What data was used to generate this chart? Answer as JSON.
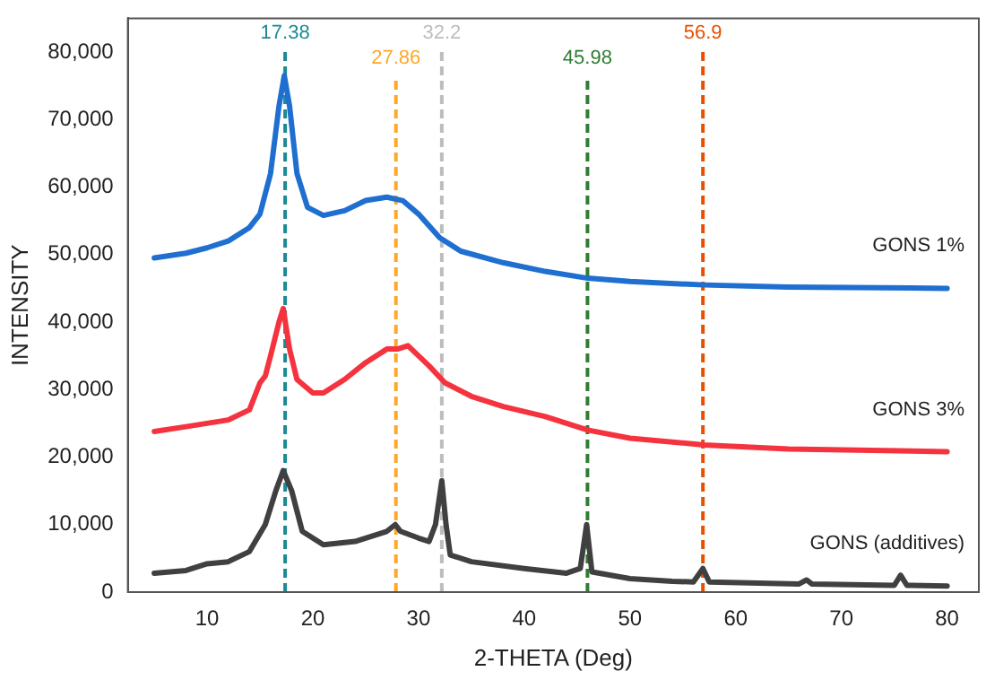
{
  "chart_data": {
    "type": "line",
    "xlabel": "2-THETA (Deg)",
    "ylabel": "INTENSITY",
    "xlim": [
      2.5,
      83
    ],
    "xticks": [
      10,
      20,
      30,
      40,
      50,
      60,
      70,
      80
    ],
    "ylim": [
      0,
      85000
    ],
    "yticks": [
      0,
      {
        "value": 10000,
        "label": "10,000"
      },
      {
        "value": 20000,
        "label": "20,000"
      },
      {
        "value": 30000,
        "label": "30,000"
      },
      {
        "value": 40000,
        "label": "40,000"
      },
      {
        "value": 50000,
        "label": "50,000"
      },
      {
        "value": 60000,
        "label": "60,000"
      },
      {
        "value": 70000,
        "label": "70,000"
      },
      {
        "value": 80000,
        "label": "80,000"
      }
    ],
    "grid": false,
    "legend": false,
    "marker": "none",
    "line_style": "solid",
    "series": [
      {
        "name": "GONS 1%",
        "color": "#1f6fd1",
        "x": [
          5,
          8,
          10,
          12,
          14,
          15,
          16,
          16.8,
          17.3,
          17.8,
          18.5,
          19.5,
          21,
          23,
          25,
          27,
          28.5,
          30,
          32,
          34,
          38,
          42,
          46,
          50,
          57,
          65,
          80
        ],
        "values": [
          49500,
          50200,
          51000,
          52000,
          54000,
          56000,
          62000,
          72000,
          76500,
          72000,
          62000,
          57000,
          55800,
          56500,
          58000,
          58500,
          58000,
          56000,
          52500,
          50500,
          48800,
          47500,
          46500,
          46000,
          45500,
          45200,
          45000
        ]
      },
      {
        "name": "GONS 3%",
        "color": "#f5333f",
        "x": [
          5,
          8,
          10,
          12,
          14,
          15,
          15.5,
          16,
          16.8,
          17.2,
          17.8,
          18.5,
          20,
          21,
          23,
          25,
          27,
          28,
          29,
          30,
          31,
          32.5,
          35,
          38,
          42,
          46,
          50,
          57,
          65,
          80
        ],
        "values": [
          23800,
          24500,
          25000,
          25500,
          27000,
          31000,
          32000,
          35000,
          40000,
          42000,
          36000,
          31500,
          29500,
          29500,
          31500,
          34000,
          36000,
          36000,
          36500,
          35000,
          33500,
          31000,
          29000,
          27500,
          26000,
          24000,
          22800,
          21800,
          21200,
          20800
        ]
      },
      {
        "name": "GONS (additives)",
        "color": "#404040",
        "x": [
          5,
          8,
          10,
          12,
          14,
          15.5,
          16.5,
          17.2,
          18,
          19,
          21,
          24,
          27,
          27.8,
          28.3,
          30,
          31,
          31.6,
          32.2,
          32.6,
          33,
          35,
          40,
          44,
          45.3,
          45.9,
          46.4,
          50,
          54,
          56,
          56.9,
          57.5,
          66,
          66.7,
          67.2,
          75,
          75.6,
          76.2,
          80
        ],
        "values": [
          2800,
          3200,
          4200,
          4500,
          6000,
          10000,
          15000,
          18000,
          15000,
          9000,
          7000,
          7500,
          9000,
          10000,
          9000,
          8000,
          7500,
          10000,
          16500,
          10000,
          5500,
          4500,
          3500,
          2800,
          3500,
          10000,
          3000,
          2000,
          1600,
          1500,
          3500,
          1500,
          1200,
          1800,
          1200,
          1000,
          2500,
          1000,
          900
        ]
      }
    ],
    "ref_lines": [
      {
        "axis": "x",
        "value": 17.38,
        "label": "17.38",
        "color": "#1a8a94",
        "line_style": "dashed"
      },
      {
        "axis": "x",
        "value": 27.86,
        "label": "27.86",
        "color": "#ffa726",
        "line_style": "dashed"
      },
      {
        "axis": "x",
        "value": 32.2,
        "label": "32.2",
        "color": "#bdbdbd",
        "line_style": "dashed"
      },
      {
        "axis": "x",
        "value": 45.98,
        "label": "45.98",
        "color": "#2e7d32",
        "line_style": "dashed"
      },
      {
        "axis": "x",
        "value": 56.9,
        "label": "56.9",
        "color": "#e65100",
        "line_style": "dashed"
      }
    ]
  }
}
